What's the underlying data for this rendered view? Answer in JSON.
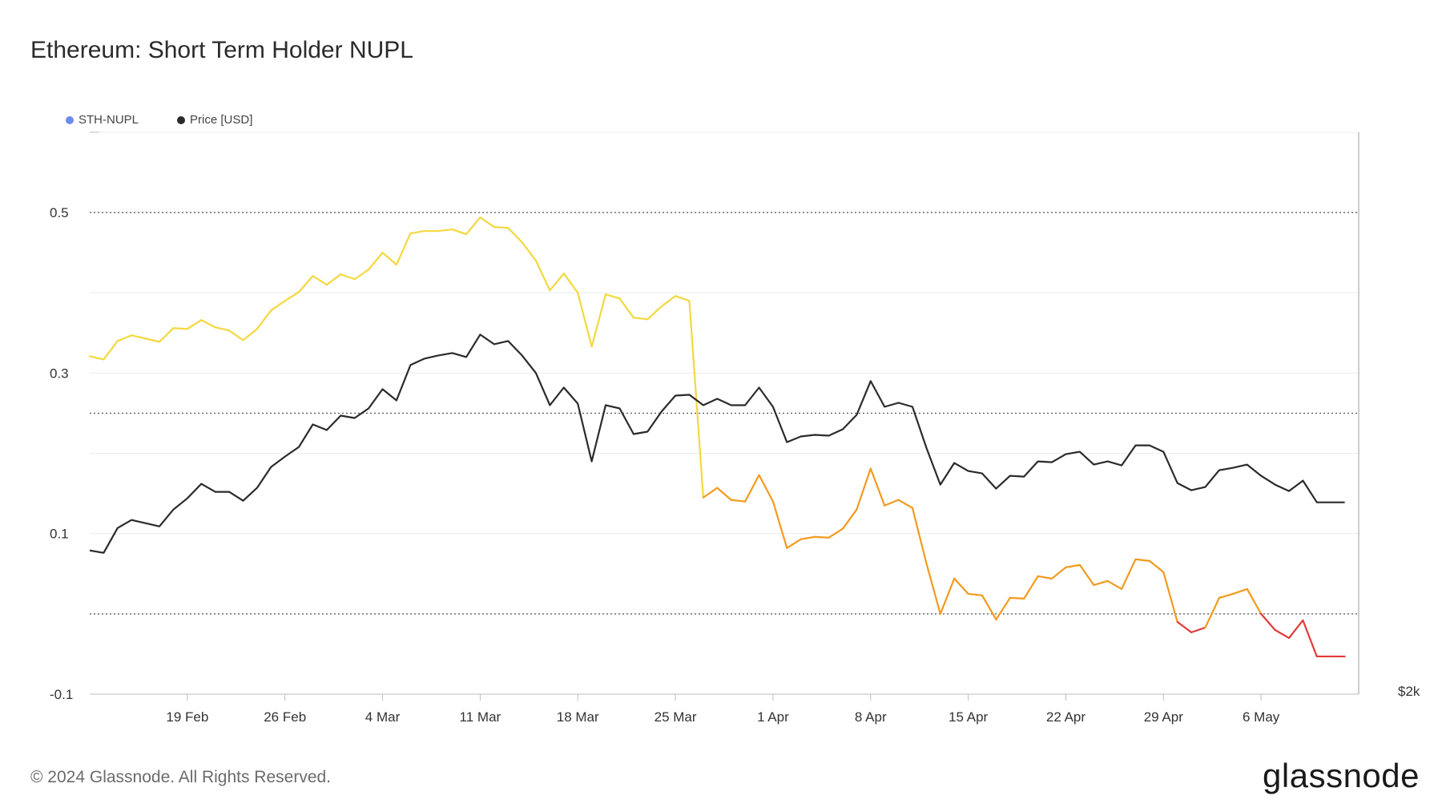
{
  "title": "Ethereum: Short Term Holder NUPL",
  "footer": "© 2024 Glassnode. All Rights Reserved.",
  "brand": "glassnode",
  "legend": [
    {
      "label": "STH-NUPL",
      "color": "#6b8cef"
    },
    {
      "label": "Price [USD]",
      "color": "#2b2b2b"
    }
  ],
  "chart_data": {
    "type": "line",
    "y_ticks": [
      "0.5",
      "0.3",
      "0.1",
      "-0.1"
    ],
    "y_tick_values": [
      0.5,
      0.3,
      0.1,
      -0.1
    ],
    "ylim": [
      -0.1,
      0.6
    ],
    "right_axis_label": "$2k",
    "x_ticks": [
      {
        "label": "19 Feb",
        "date": "2024-02-19"
      },
      {
        "label": "26 Feb",
        "date": "2024-02-26"
      },
      {
        "label": "4 Mar",
        "date": "2024-03-04"
      },
      {
        "label": "11 Mar",
        "date": "2024-03-11"
      },
      {
        "label": "18 Mar",
        "date": "2024-03-18"
      },
      {
        "label": "25 Mar",
        "date": "2024-03-25"
      },
      {
        "label": "1 Apr",
        "date": "2024-04-01"
      },
      {
        "label": "8 Apr",
        "date": "2024-04-08"
      },
      {
        "label": "15 Apr",
        "date": "2024-04-15"
      },
      {
        "label": "22 Apr",
        "date": "2024-04-22"
      },
      {
        "label": "29 Apr",
        "date": "2024-04-29"
      },
      {
        "label": "6 May",
        "date": "2024-05-06"
      }
    ],
    "x_start": "2024-02-12",
    "x_end": "2024-05-13",
    "reference_lines": [
      0.5,
      0.25,
      0.0
    ],
    "color_bands": [
      {
        "min": 0.25,
        "color": "#f4d83f"
      },
      {
        "min": 0.0,
        "color": "#f39a1f"
      },
      {
        "min": -1,
        "color": "#e23a3a"
      }
    ],
    "series": [
      {
        "name": "STH-NUPL",
        "x": [
          "2024-02-12",
          "2024-02-13",
          "2024-02-14",
          "2024-02-15",
          "2024-02-16",
          "2024-02-17",
          "2024-02-18",
          "2024-02-19",
          "2024-02-20",
          "2024-02-21",
          "2024-02-22",
          "2024-02-23",
          "2024-02-24",
          "2024-02-25",
          "2024-02-26",
          "2024-02-27",
          "2024-02-28",
          "2024-02-29",
          "2024-03-01",
          "2024-03-02",
          "2024-03-03",
          "2024-03-04",
          "2024-03-05",
          "2024-03-06",
          "2024-03-07",
          "2024-03-08",
          "2024-03-09",
          "2024-03-10",
          "2024-03-11",
          "2024-03-12",
          "2024-03-13",
          "2024-03-14",
          "2024-03-15",
          "2024-03-16",
          "2024-03-17",
          "2024-03-18",
          "2024-03-19",
          "2024-03-20",
          "2024-03-21",
          "2024-03-22",
          "2024-03-23",
          "2024-03-24",
          "2024-03-25",
          "2024-03-26",
          "2024-03-27",
          "2024-03-28",
          "2024-03-29",
          "2024-03-30",
          "2024-03-31",
          "2024-04-01",
          "2024-04-02",
          "2024-04-03",
          "2024-04-04",
          "2024-04-05",
          "2024-04-06",
          "2024-04-07",
          "2024-04-08",
          "2024-04-09",
          "2024-04-10",
          "2024-04-11",
          "2024-04-12",
          "2024-04-13",
          "2024-04-14",
          "2024-04-15",
          "2024-04-16",
          "2024-04-17",
          "2024-04-18",
          "2024-04-19",
          "2024-04-20",
          "2024-04-21",
          "2024-04-22",
          "2024-04-23",
          "2024-04-24",
          "2024-04-25",
          "2024-04-26",
          "2024-04-27",
          "2024-04-28",
          "2024-04-29",
          "2024-04-30",
          "2024-05-01",
          "2024-05-02",
          "2024-05-03",
          "2024-05-04",
          "2024-05-05",
          "2024-05-06",
          "2024-05-07",
          "2024-05-08",
          "2024-05-09",
          "2024-05-10",
          "2024-05-11",
          "2024-05-12"
        ],
        "values": [
          0.321,
          0.317,
          0.34,
          0.347,
          0.343,
          0.339,
          0.356,
          0.355,
          0.366,
          0.357,
          0.353,
          0.341,
          0.355,
          0.378,
          0.39,
          0.401,
          0.421,
          0.41,
          0.423,
          0.417,
          0.429,
          0.45,
          0.435,
          0.474,
          0.477,
          0.477,
          0.479,
          0.473,
          0.494,
          0.482,
          0.481,
          0.463,
          0.44,
          0.403,
          0.424,
          0.4,
          0.333,
          0.398,
          0.393,
          0.369,
          0.367,
          0.383,
          0.396,
          0.39,
          0.145,
          0.157,
          0.142,
          0.14,
          0.173,
          0.14,
          0.082,
          0.093,
          0.096,
          0.095,
          0.106,
          0.13,
          0.181,
          0.135,
          0.142,
          0.132,
          0.063,
          0.0,
          0.044,
          0.025,
          0.023,
          -0.007,
          0.02,
          0.019,
          0.047,
          0.044,
          0.058,
          0.061,
          0.036,
          0.041,
          0.031,
          0.068,
          0.066,
          0.052,
          -0.01,
          -0.023,
          -0.017,
          0.02,
          0.025,
          0.031,
          0.0,
          -0.02,
          -0.03,
          -0.008,
          -0.053,
          -0.053,
          -0.053
        ]
      },
      {
        "name": "Price [USD]",
        "x": [
          "2024-02-12",
          "2024-02-13",
          "2024-02-14",
          "2024-02-15",
          "2024-02-16",
          "2024-02-17",
          "2024-02-18",
          "2024-02-19",
          "2024-02-20",
          "2024-02-21",
          "2024-02-22",
          "2024-02-23",
          "2024-02-24",
          "2024-02-25",
          "2024-02-26",
          "2024-02-27",
          "2024-02-28",
          "2024-02-29",
          "2024-03-01",
          "2024-03-02",
          "2024-03-03",
          "2024-03-04",
          "2024-03-05",
          "2024-03-06",
          "2024-03-07",
          "2024-03-08",
          "2024-03-09",
          "2024-03-10",
          "2024-03-11",
          "2024-03-12",
          "2024-03-13",
          "2024-03-14",
          "2024-03-15",
          "2024-03-16",
          "2024-03-17",
          "2024-03-18",
          "2024-03-19",
          "2024-03-20",
          "2024-03-21",
          "2024-03-22",
          "2024-03-23",
          "2024-03-24",
          "2024-03-25",
          "2024-03-26",
          "2024-03-27",
          "2024-03-28",
          "2024-03-29",
          "2024-03-30",
          "2024-03-31",
          "2024-04-01",
          "2024-04-02",
          "2024-04-03",
          "2024-04-04",
          "2024-04-05",
          "2024-04-06",
          "2024-04-07",
          "2024-04-08",
          "2024-04-09",
          "2024-04-10",
          "2024-04-11",
          "2024-04-12",
          "2024-04-13",
          "2024-04-14",
          "2024-04-15",
          "2024-04-16",
          "2024-04-17",
          "2024-04-18",
          "2024-04-19",
          "2024-04-20",
          "2024-04-21",
          "2024-04-22",
          "2024-04-23",
          "2024-04-24",
          "2024-04-25",
          "2024-04-26",
          "2024-04-27",
          "2024-04-28",
          "2024-04-29",
          "2024-04-30",
          "2024-05-01",
          "2024-05-02",
          "2024-05-03",
          "2024-05-04",
          "2024-05-05",
          "2024-05-06",
          "2024-05-07",
          "2024-05-08",
          "2024-05-09",
          "2024-05-10",
          "2024-05-11",
          "2024-05-12"
        ],
        "values": [
          0.079,
          0.076,
          0.107,
          0.117,
          0.113,
          0.109,
          0.13,
          0.144,
          0.162,
          0.152,
          0.152,
          0.141,
          0.157,
          0.183,
          0.196,
          0.208,
          0.236,
          0.229,
          0.247,
          0.244,
          0.256,
          0.28,
          0.266,
          0.31,
          0.318,
          0.322,
          0.325,
          0.32,
          0.348,
          0.336,
          0.34,
          0.322,
          0.3,
          0.26,
          0.282,
          0.262,
          0.19,
          0.26,
          0.256,
          0.224,
          0.227,
          0.252,
          0.272,
          0.273,
          0.26,
          0.268,
          0.26,
          0.26,
          0.282,
          0.258,
          0.214,
          0.221,
          0.223,
          0.222,
          0.23,
          0.248,
          0.29,
          0.258,
          0.263,
          0.258,
          0.207,
          0.161,
          0.188,
          0.178,
          0.175,
          0.156,
          0.172,
          0.171,
          0.19,
          0.189,
          0.199,
          0.202,
          0.186,
          0.19,
          0.185,
          0.21,
          0.21,
          0.202,
          0.163,
          0.154,
          0.158,
          0.179,
          0.182,
          0.186,
          0.172,
          0.161,
          0.153,
          0.166,
          0.139,
          0.139,
          0.139
        ]
      }
    ]
  }
}
